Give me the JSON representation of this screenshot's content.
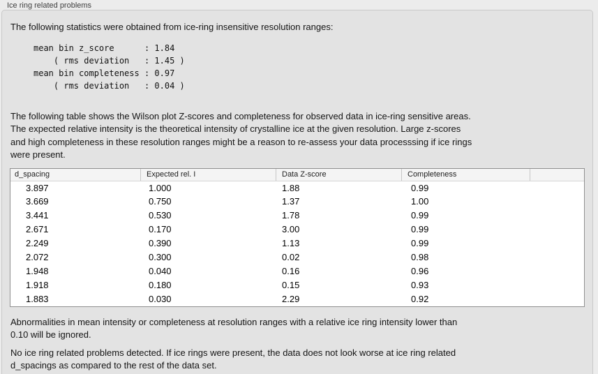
{
  "window": {
    "group_label": "Ice ring related problems"
  },
  "panel": {
    "intro": "The following statistics were obtained from ice-ring insensitive resolution ranges:",
    "stats_block": "mean bin z_score      : 1.84\n    ( rms deviation   : 1.45 )\nmean bin completeness : 0.97\n    ( rms deviation   : 0.04 )",
    "description": "The following table shows the Wilson plot Z-scores and completeness for observed data in ice-ring sensitive areas.\nThe expected relative intensity is the theoretical intensity of crystalline ice at the given resolution. Large z-scores\nand high completeness in these resolution ranges might be a reason to re-assess your data processsing if ice rings\nwere present.",
    "table": {
      "columns": [
        "d_spacing",
        "Expected rel. I",
        "Data Z-score",
        "Completeness",
        ""
      ],
      "rows": [
        [
          "3.897",
          "1.000",
          "1.88",
          "0.99",
          ""
        ],
        [
          "3.669",
          "0.750",
          "1.37",
          "1.00",
          ""
        ],
        [
          "3.441",
          "0.530",
          "1.78",
          "0.99",
          ""
        ],
        [
          "2.671",
          "0.170",
          "3.00",
          "0.99",
          ""
        ],
        [
          "2.249",
          "0.390",
          "1.13",
          "0.99",
          ""
        ],
        [
          "2.072",
          "0.300",
          "0.02",
          "0.98",
          ""
        ],
        [
          "1.948",
          "0.040",
          "0.16",
          "0.96",
          ""
        ],
        [
          "1.918",
          "0.180",
          "0.15",
          "0.93",
          ""
        ],
        [
          "1.883",
          "0.030",
          "2.29",
          "0.92",
          ""
        ]
      ]
    },
    "note_ignore": "Abnormalities in mean intensity or completeness at resolution ranges with a relative ice ring intensity lower than\n0.10 will be ignored.",
    "conclusion": "No ice ring related problems detected. If ice rings were present, the data does not look worse at ice ring related\nd_spacings as compared to the rest of the data set."
  },
  "colors": {
    "page_background": "#ececec",
    "panel_background": "#e3e3e3",
    "panel_border": "#c9c9c9",
    "table_border": "#8f8f8f",
    "table_header_background": "#f4f4f4",
    "text": "#141414"
  }
}
